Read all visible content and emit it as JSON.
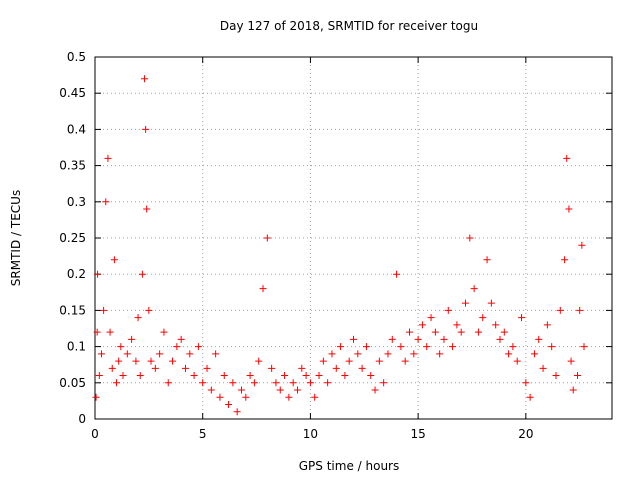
{
  "chart_data": {
    "type": "scatter",
    "title": "Day 127 of 2018, SRMTID for receiver togu",
    "xlabel": "GPS time / hours",
    "ylabel": "SRMTID / TECUs",
    "xlim": [
      0,
      24
    ],
    "ylim": [
      0,
      0.5
    ],
    "xticks": [
      0,
      5,
      10,
      15,
      20
    ],
    "xtick_labels": [
      "0",
      "5",
      "10",
      "15",
      "20"
    ],
    "yticks": [
      0,
      0.05,
      0.1,
      0.15,
      0.2,
      0.25,
      0.3,
      0.35,
      0.4,
      0.45,
      0.5
    ],
    "ytick_labels": [
      "0",
      "0.05",
      "0.1",
      "0.15",
      "0.2",
      "0.25",
      "0.3",
      "0.35",
      "0.4",
      "0.45",
      "0.5"
    ],
    "grid": true,
    "marker": "+",
    "color": "#ff0000",
    "series": [
      {
        "name": "SRMTID",
        "x": [
          0.05,
          0.1,
          0.12,
          0.2,
          0.3,
          0.4,
          0.5,
          0.6,
          0.7,
          0.8,
          0.9,
          1.0,
          1.1,
          1.2,
          1.3,
          1.5,
          1.7,
          1.9,
          2.0,
          2.1,
          2.2,
          2.3,
          2.35,
          2.4,
          2.5,
          2.6,
          2.8,
          3.0,
          3.2,
          3.4,
          3.6,
          3.8,
          4.0,
          4.2,
          4.4,
          4.6,
          4.8,
          5.0,
          5.2,
          5.4,
          5.6,
          5.8,
          6.0,
          6.2,
          6.4,
          6.6,
          6.8,
          7.0,
          7.2,
          7.4,
          7.6,
          7.8,
          8.0,
          8.2,
          8.4,
          8.6,
          8.8,
          9.0,
          9.2,
          9.4,
          9.6,
          9.8,
          10.0,
          10.2,
          10.4,
          10.6,
          10.8,
          11.0,
          11.2,
          11.4,
          11.6,
          11.8,
          12.0,
          12.2,
          12.4,
          12.6,
          12.8,
          13.0,
          13.2,
          13.4,
          13.6,
          13.8,
          14.0,
          14.2,
          14.4,
          14.6,
          14.8,
          15.0,
          15.2,
          15.4,
          15.6,
          15.8,
          16.0,
          16.2,
          16.4,
          16.6,
          16.8,
          17.0,
          17.2,
          17.4,
          17.6,
          17.8,
          18.0,
          18.2,
          18.4,
          18.6,
          18.8,
          19.0,
          19.2,
          19.4,
          19.6,
          19.8,
          20.0,
          20.2,
          20.4,
          20.6,
          20.8,
          21.0,
          21.2,
          21.4,
          21.6,
          21.8,
          21.9,
          22.0,
          22.1,
          22.2,
          22.4,
          22.5,
          22.6,
          22.7
        ],
        "y": [
          0.03,
          0.12,
          0.2,
          0.06,
          0.09,
          0.15,
          0.3,
          0.36,
          0.12,
          0.07,
          0.22,
          0.05,
          0.08,
          0.1,
          0.06,
          0.09,
          0.11,
          0.08,
          0.14,
          0.06,
          0.2,
          0.47,
          0.4,
          0.29,
          0.15,
          0.08,
          0.07,
          0.09,
          0.12,
          0.05,
          0.08,
          0.1,
          0.11,
          0.07,
          0.09,
          0.06,
          0.1,
          0.05,
          0.07,
          0.04,
          0.09,
          0.03,
          0.06,
          0.02,
          0.05,
          0.01,
          0.04,
          0.03,
          0.06,
          0.05,
          0.08,
          0.18,
          0.25,
          0.07,
          0.05,
          0.04,
          0.06,
          0.03,
          0.05,
          0.04,
          0.07,
          0.06,
          0.05,
          0.03,
          0.06,
          0.08,
          0.05,
          0.09,
          0.07,
          0.1,
          0.06,
          0.08,
          0.11,
          0.09,
          0.07,
          0.1,
          0.06,
          0.04,
          0.08,
          0.05,
          0.09,
          0.11,
          0.2,
          0.1,
          0.08,
          0.12,
          0.09,
          0.11,
          0.13,
          0.1,
          0.14,
          0.12,
          0.09,
          0.11,
          0.15,
          0.1,
          0.13,
          0.12,
          0.16,
          0.25,
          0.18,
          0.12,
          0.14,
          0.22,
          0.16,
          0.13,
          0.11,
          0.12,
          0.09,
          0.1,
          0.08,
          0.14,
          0.05,
          0.03,
          0.09,
          0.11,
          0.07,
          0.13,
          0.1,
          0.06,
          0.15,
          0.22,
          0.36,
          0.29,
          0.08,
          0.04,
          0.06,
          0.15,
          0.24,
          0.1
        ]
      }
    ]
  }
}
